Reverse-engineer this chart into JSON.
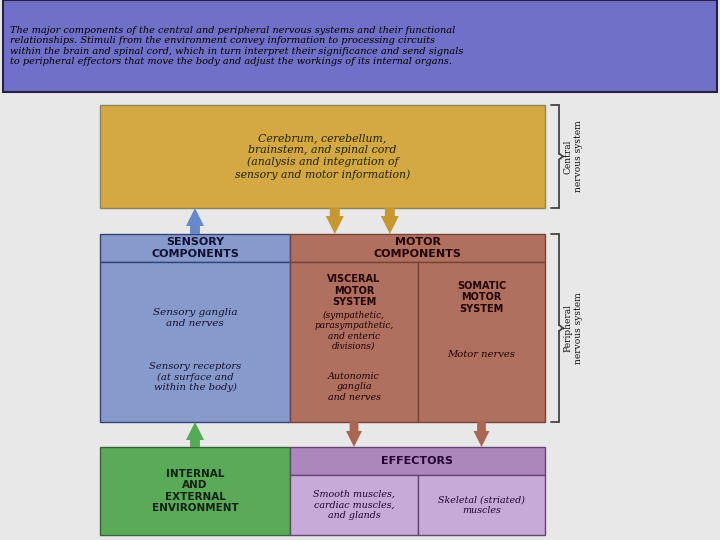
{
  "title_text": "The major components of the central and peripheral nervous systems and their functional\nrelationships. Stimuli from the environment convey information to processing circuits\nwithin the brain and spinal cord, which in turn interpret their significance and send signals\nto peripheral effectors that move the body and adjust the workings of its internal organs.",
  "title_bg": "#7070c8",
  "title_fg": "#000000",
  "bg_color": "#e8e8e8",
  "diagram_bg": "#d8d8d8",
  "colors": {
    "gold": "#d4a843",
    "blue": "#8899cc",
    "brown": "#b07060",
    "green": "#5aaa5a",
    "purple_header": "#aa88bb",
    "purple_light": "#c8aad8"
  },
  "brace_color": "#444444",
  "arrow_colors": {
    "blue_up": "#6688cc",
    "gold_down": "#c89830",
    "brown_down": "#aa6655",
    "green_up": "#55aa55"
  },
  "box_texts": {
    "cerebrum": "Cerebrum, cerebellum,\nbrainstem, and spinal cord\n(analysis and integration of\nsensory and motor information)",
    "sensory_hdr": "SENSORY\nCOMPONENTS",
    "motor_hdr": "MOTOR\nCOMPONENTS",
    "sensory_ganglia": "Sensory ganglia\nand nerves",
    "sensory_receptors": "Sensory receptors\n(at surface and\nwithin the body)",
    "visceral_hdr": "VISCERAL\nMOTOR\nSYSTEM",
    "visceral_body": "(sympathetic,\nparasympathetic,\nand enteric\ndivisions)",
    "autonomic": "Autonomic\nganglia\nand nerves",
    "somatic_hdr": "SOMATIC\nMOTOR\nSYSTEM",
    "motor_nerves": "Motor nerves",
    "environment": "INTERNAL\nAND\nEXTERNAL\nENVIRONMENT",
    "effectors": "EFFECTORS",
    "smooth": "Smooth muscles,\ncardiac muscles,\nand glands",
    "skeletal": "Skeletal (striated)\nmuscles",
    "central": "Central\nnervous system",
    "peripheral": "Peripheral\nnervous system"
  }
}
